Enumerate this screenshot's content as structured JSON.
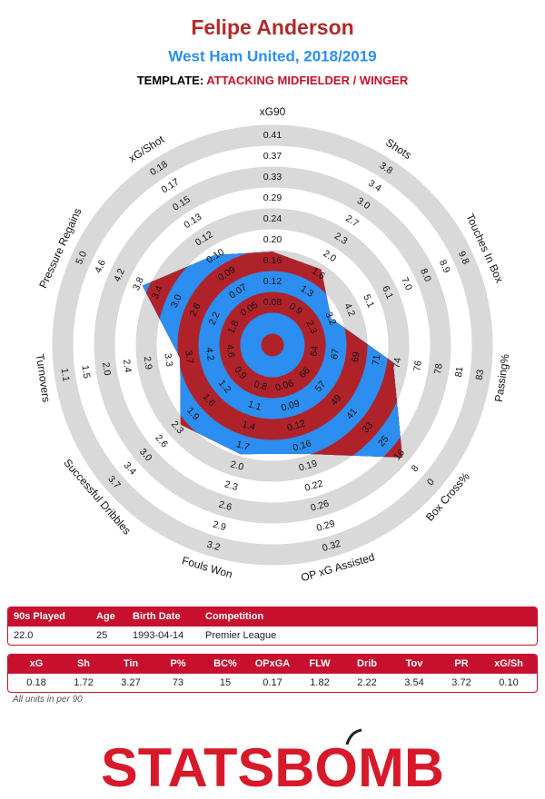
{
  "header": {
    "title": "Felipe Anderson",
    "subtitle": "West Ham United, 2018/2019",
    "template_label": "TEMPLATE:",
    "template": "ATTACKING MIDFIELDER / WINGER"
  },
  "chart_data": {
    "type": "radar",
    "color": "#2b8ef0",
    "band_color": "#b0222a",
    "ring_color": "#d9d9d9",
    "axes": [
      {
        "label": "xG90",
        "ticks": [
          0.08,
          0.12,
          0.16,
          {
            "value": 0.2,
            "label": "0.20"
          },
          0.24,
          0.29,
          0.33,
          0.37,
          0.41
        ]
      },
      {
        "label": "Shots",
        "ticks": [
          0.9,
          1.3,
          1.6,
          {
            "value": 2,
            "label": "2.0"
          },
          2.3,
          2.7,
          {
            "value": 3,
            "label": "3.0"
          },
          3.4,
          3.8
        ]
      },
      {
        "label": "Touches In Box",
        "ticks": [
          2.3,
          3.2,
          4.2,
          5.1,
          6.1,
          {
            "value": 7,
            "label": "7.0"
          },
          {
            "value": 8,
            "label": "8.0"
          },
          8.9,
          9.8
        ]
      },
      {
        "label": "Passing%",
        "ticks": [
          64,
          67,
          69,
          71,
          74,
          76,
          78,
          81,
          83
        ]
      },
      {
        "label": "Box Cross%",
        "ticks": [
          66,
          57,
          49,
          41,
          33,
          25,
          16,
          8,
          0
        ]
      },
      {
        "label": "OP xG Assisted",
        "ticks": [
          0.06,
          0.09,
          0.12,
          0.16,
          0.19,
          0.22,
          0.26,
          0.29,
          0.32
        ]
      },
      {
        "label": "Fouls Won",
        "ticks": [
          0.8,
          1.1,
          1.4,
          1.7,
          {
            "value": 2,
            "label": "2.0"
          },
          2.3,
          2.6,
          2.9,
          3.2
        ]
      },
      {
        "label": "Successful Dribbles",
        "ticks": [
          0.9,
          1.2,
          1.6,
          1.9,
          2.3,
          2.6,
          {
            "value": 3,
            "label": "3.0"
          },
          3.4,
          3.7
        ]
      },
      {
        "label": "Turnovers",
        "ticks": [
          4.6,
          4.2,
          3.7,
          3.3,
          2.9,
          2.4,
          {
            "value": 2,
            "label": "2.0"
          },
          1.5,
          1.1
        ]
      },
      {
        "label": "Pressure Regains",
        "ticks": [
          1.8,
          2.2,
          2.6,
          {
            "value": 3,
            "label": "3.0"
          },
          3.4,
          3.8,
          4.2,
          4.6,
          {
            "value": 5,
            "label": "5.0"
          }
        ]
      },
      {
        "label": "xG/Shot",
        "ticks": [
          0.05,
          0.07,
          0.09,
          {
            "value": 0.1,
            "label": "0.10"
          },
          0.12,
          0.13,
          0.15,
          0.17,
          0.18
        ]
      }
    ],
    "values": [
      0.18,
      1.72,
      3.27,
      73,
      15,
      0.17,
      1.82,
      2.22,
      3.54,
      3.72,
      0.1
    ]
  },
  "info_table": {
    "headers": [
      "90s Played",
      "Age",
      "Birth Date",
      "Competition"
    ],
    "row": [
      "22.0",
      "25",
      "1993-04-14",
      "Premier League"
    ]
  },
  "stats_table": {
    "headers": [
      "xG",
      "Sh",
      "Tin",
      "P%",
      "BC%",
      "OPxGA",
      "FLW",
      "Drib",
      "Tov",
      "PR",
      "xG/Sh"
    ],
    "row": [
      "0.18",
      "1.72",
      "3.27",
      "73",
      "15",
      "0.17",
      "1.82",
      "2.22",
      "3.54",
      "3.72",
      "0.10"
    ]
  },
  "note": "All units in per 90",
  "logo": "STATSBOMB"
}
